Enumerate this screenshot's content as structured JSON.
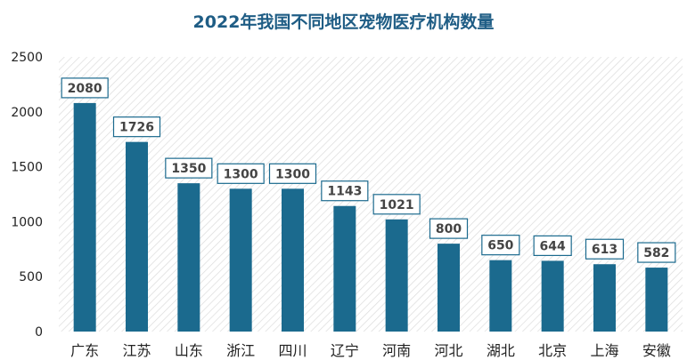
{
  "chart_data": {
    "type": "bar",
    "title": "2022年我国不同地区宠物医疗机构数量",
    "categories": [
      "广东",
      "江苏",
      "山东",
      "浙江",
      "四川",
      "辽宁",
      "河南",
      "河北",
      "湖北",
      "北京",
      "上海",
      "安徽"
    ],
    "values": [
      2080,
      1726,
      1350,
      1300,
      1300,
      1143,
      1021,
      800,
      650,
      644,
      613,
      582
    ],
    "data_labels": [
      "2080",
      "1726",
      "1350",
      "1300",
      "1300",
      "1143",
      "1021",
      "800",
      "650",
      "644",
      "613",
      "582"
    ],
    "y_ticks": [
      "0",
      "500",
      "1000",
      "1500",
      "2000",
      "2500"
    ],
    "y_tick_values": [
      0,
      500,
      1000,
      1500,
      2000,
      2500
    ],
    "ylim": [
      0,
      2500
    ],
    "xlabel": "",
    "ylabel": "",
    "grid": false,
    "legend": "none",
    "colors": {
      "bar": "#1b6a8e",
      "label_border": "#1b6a8e",
      "label_text": "#444444",
      "title": "#1f5d85",
      "plot_hatch": "#d9d9d9"
    }
  }
}
